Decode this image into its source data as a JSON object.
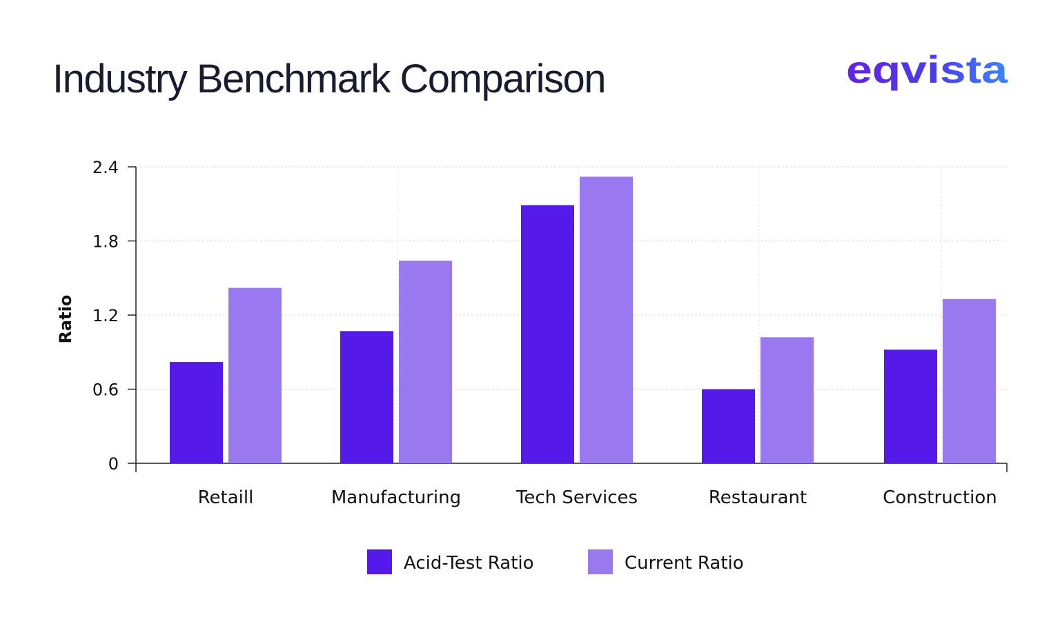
{
  "header": {
    "title": "Industry Benchmark Comparison",
    "brand": "eqvista",
    "brand_colors": [
      "#6322e3",
      "#4b3de8",
      "#3a86ff"
    ]
  },
  "chart_data": {
    "type": "bar",
    "title": "Industry Benchmark Comparison",
    "xlabel": "",
    "ylabel": "Ratio",
    "categories": [
      "Retaill",
      "Manufacturing",
      "Tech Services",
      "Restaurant",
      "Construction"
    ],
    "series": [
      {
        "name": "Acid-Test Ratio",
        "color": "#5519e9",
        "values": [
          0.82,
          1.07,
          2.09,
          0.6,
          0.92
        ]
      },
      {
        "name": "Current Ratio",
        "color": "#9a78ef",
        "values": [
          1.42,
          1.64,
          2.32,
          1.02,
          1.33
        ]
      }
    ],
    "ylim": [
      0,
      2.4
    ],
    "yticks": [
      0,
      0.6,
      1.2,
      1.8,
      2.4
    ],
    "ytick_labels": [
      "0",
      "0.6",
      "1.2",
      "1.8",
      "2.4"
    ],
    "grid": true,
    "legend_position": "bottom-center"
  }
}
